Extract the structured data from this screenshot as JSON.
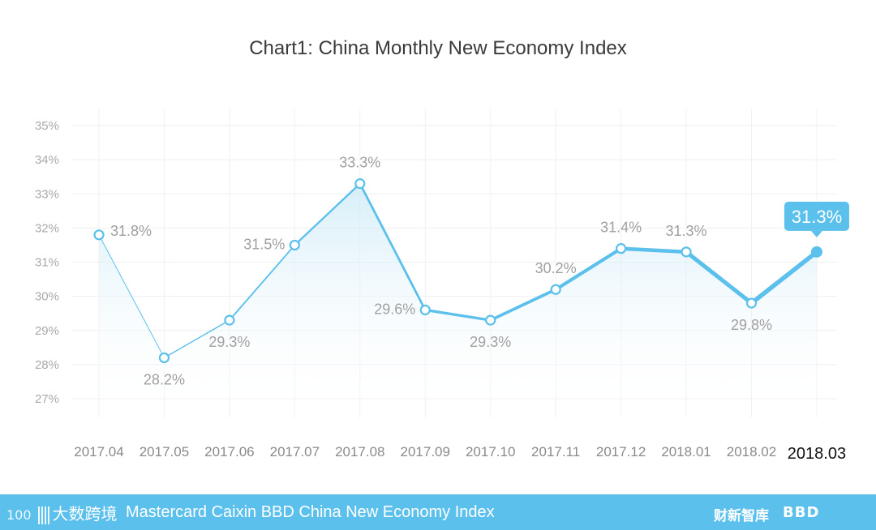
{
  "chart_data": {
    "type": "line",
    "title": "Chart1: China Monthly New Economy Index",
    "categories": [
      "2017.04",
      "2017.05",
      "2017.06",
      "2017.07",
      "2017.08",
      "2017.09",
      "2017.10",
      "2017.11",
      "2017.12",
      "2018.01",
      "2018.02",
      "2018.03"
    ],
    "values": [
      31.8,
      28.2,
      29.3,
      31.5,
      33.3,
      29.6,
      29.3,
      30.2,
      31.4,
      31.3,
      29.8,
      31.3
    ],
    "data_labels": [
      "31.8%",
      "28.2%",
      "29.3%",
      "31.5%",
      "33.3%",
      "29.6%",
      "29.3%",
      "30.2%",
      "31.4%",
      "31.3%",
      "29.8%",
      "31.3%"
    ],
    "yticks": [
      "27%",
      "28%",
      "29%",
      "30%",
      "31%",
      "32%",
      "33%",
      "34%",
      "35%"
    ],
    "ylim": [
      27,
      35
    ],
    "grid": true,
    "line_color": "#5bc0eb",
    "area_color": "#d6eef8",
    "highlight_point": "2018.03"
  },
  "footer": {
    "logo_left": "大数跨境",
    "logo_left_prefix": "100",
    "text": "Mastercard Caixin BBD China New Economy Index",
    "logo_caixin": "财新智库",
    "logo_bbd": "BBD",
    "background": "#5bc0eb"
  }
}
